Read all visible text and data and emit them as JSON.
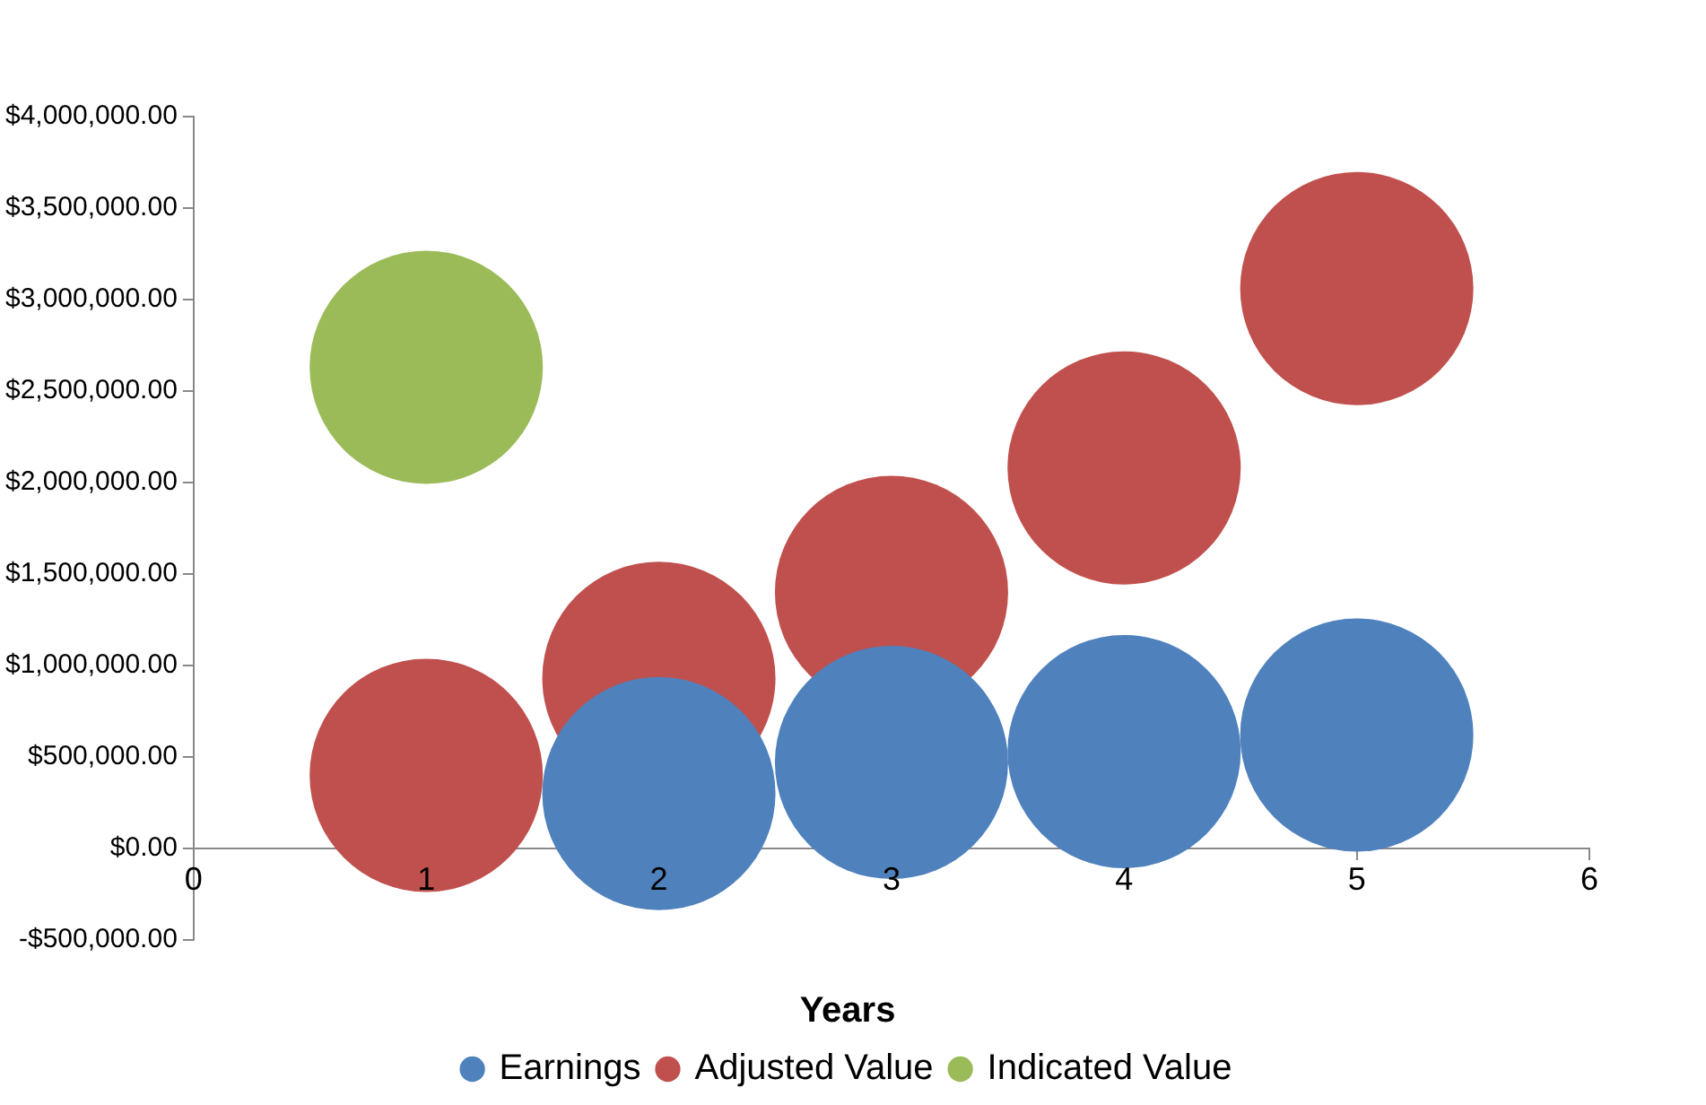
{
  "chart_data": {
    "type": "bubble",
    "xlabel": "Years",
    "series": [
      {
        "name": "Earnings",
        "color": "#4f81bd",
        "x": [
          2,
          3,
          4,
          5
        ],
        "values": [
          300000,
          470000,
          530000,
          620000
        ],
        "sizes": [
          1,
          1,
          1,
          1
        ]
      },
      {
        "name": "Adjusted Value",
        "color": "#c0504d",
        "x": [
          1,
          2,
          3,
          4,
          5
        ],
        "values": [
          400000,
          930000,
          1400000,
          2080000,
          3060000
        ],
        "sizes": [
          1,
          1,
          1,
          1,
          1
        ]
      },
      {
        "name": "Indicated Value",
        "color": "#9bbb59",
        "x": [
          1
        ],
        "values": [
          2630000
        ],
        "sizes": [
          1
        ]
      }
    ],
    "xlim": [
      0,
      6
    ],
    "xticks": [
      0,
      1,
      2,
      3,
      4,
      5,
      6
    ],
    "ylim": [
      -500000,
      4000000
    ],
    "yticks": [
      {
        "value": -500000,
        "label": "-$500,000.00"
      },
      {
        "value": 0,
        "label": "$0.00"
      },
      {
        "value": 500000,
        "label": "$500,000.00"
      },
      {
        "value": 1000000,
        "label": "$1,000,000.00"
      },
      {
        "value": 1500000,
        "label": "$1,500,000.00"
      },
      {
        "value": 2000000,
        "label": "$2,000,000.00"
      },
      {
        "value": 2500000,
        "label": "$2,500,000.00"
      },
      {
        "value": 3000000,
        "label": "$3,000,000.00"
      },
      {
        "value": 3500000,
        "label": "$3,500,000.00"
      },
      {
        "value": 4000000,
        "label": "$4,000,000.00"
      }
    ],
    "grid": false,
    "legend": "bottom"
  }
}
